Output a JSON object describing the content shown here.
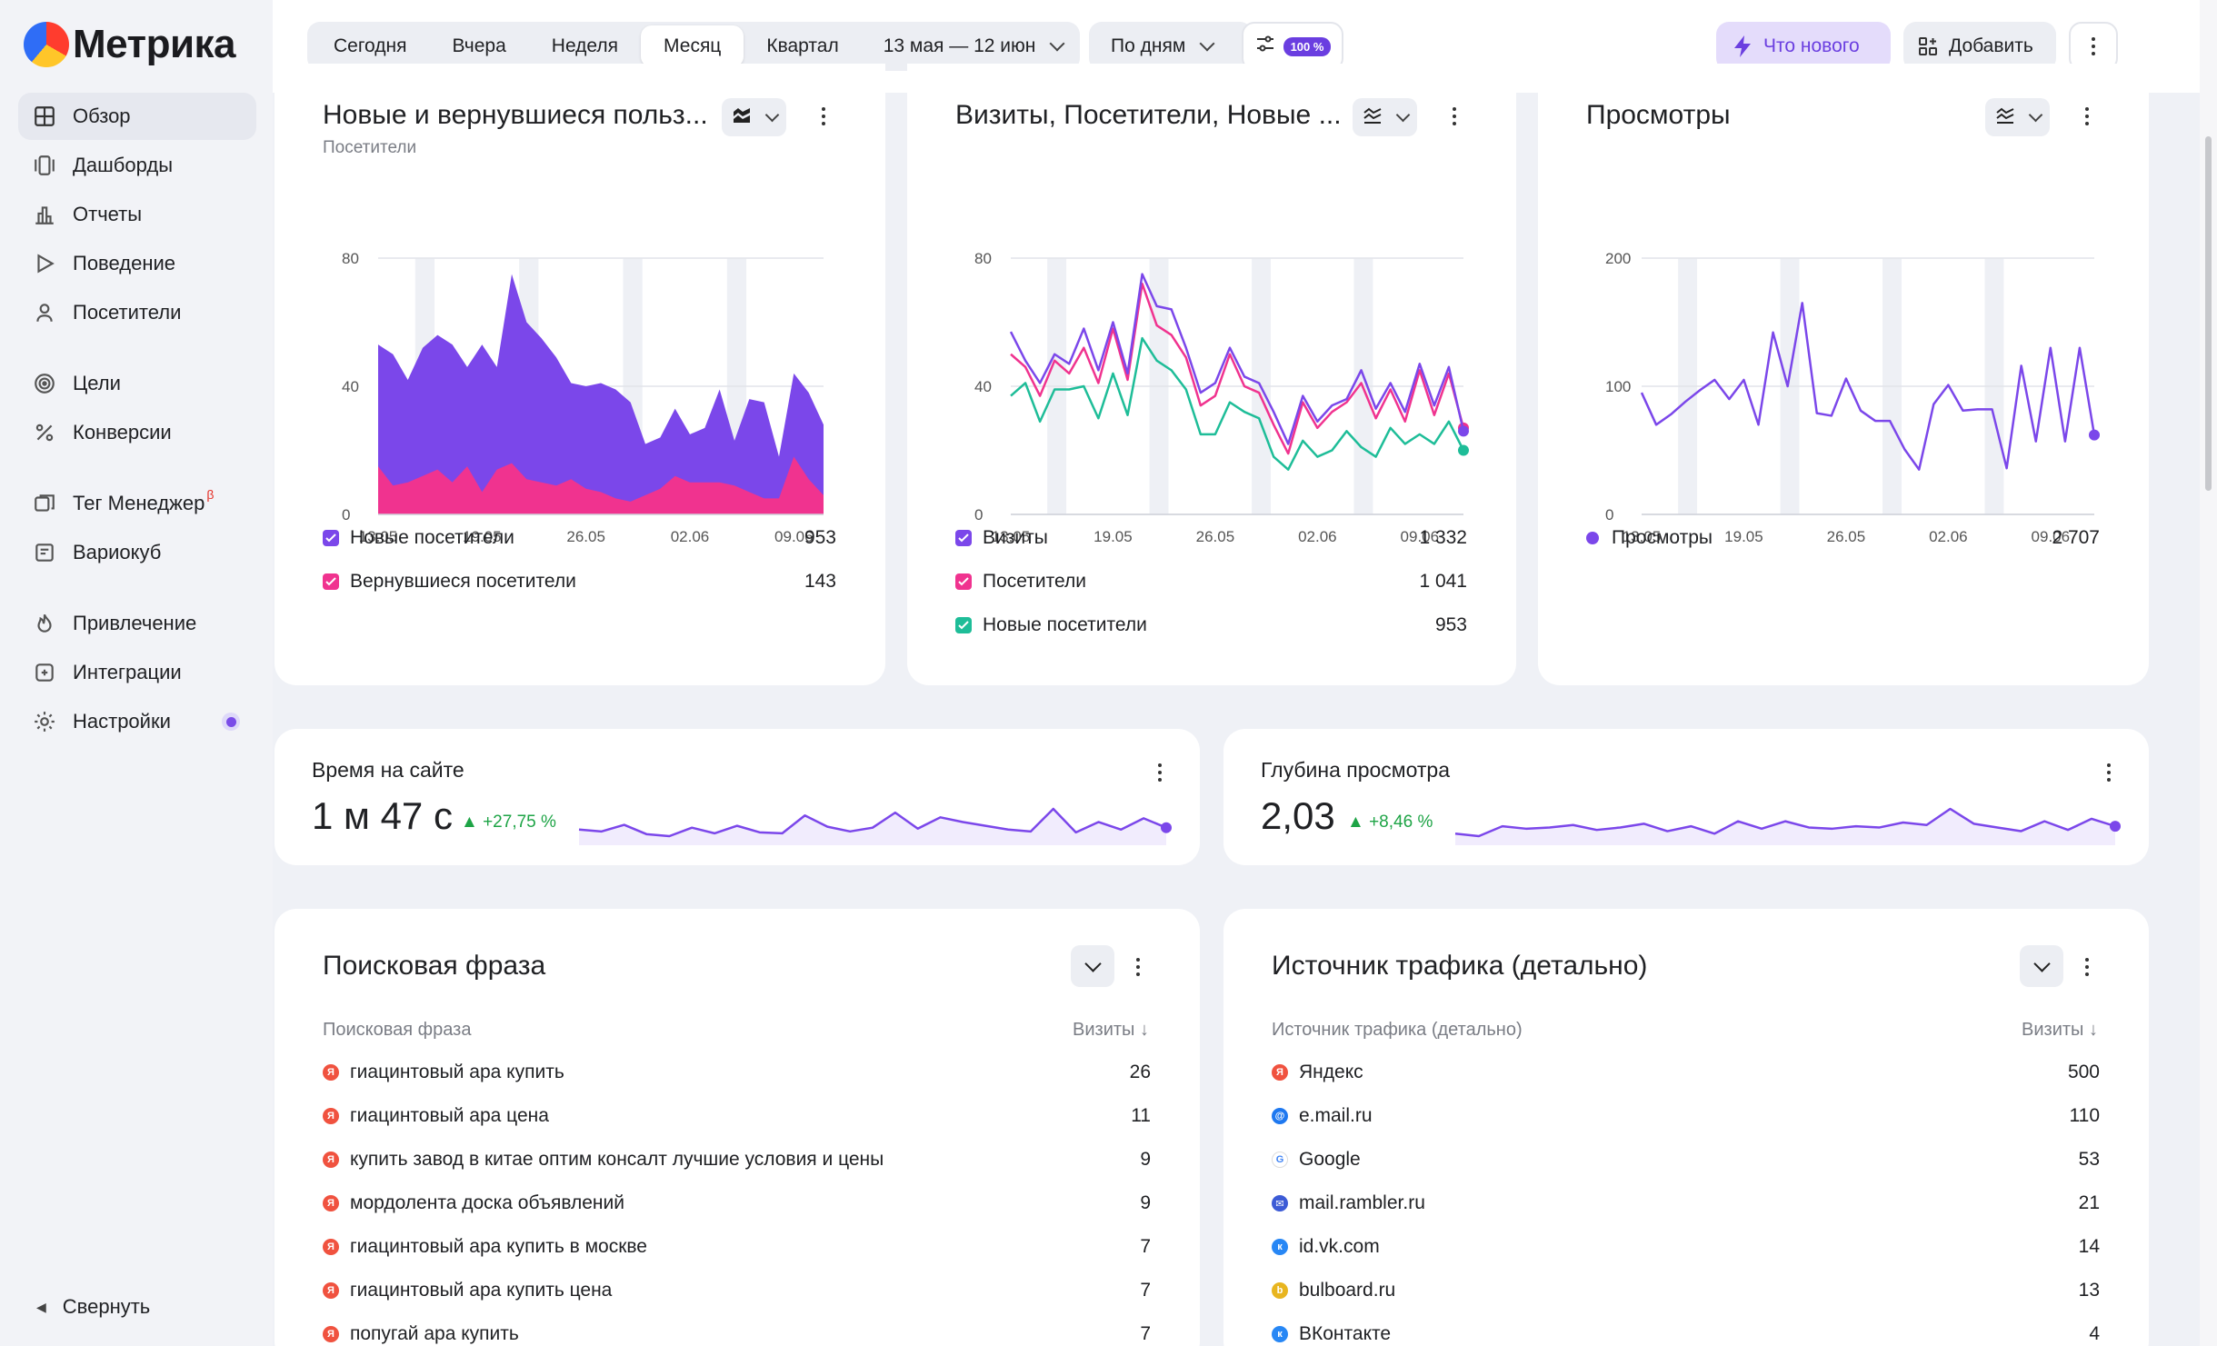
{
  "app": {
    "logo_text": "Метрика"
  },
  "sidebar": {
    "items": [
      {
        "label": "Обзор",
        "icon": "grid-icon",
        "active": true
      },
      {
        "label": "Дашборды",
        "icon": "dashboards-icon"
      },
      {
        "label": "Отчеты",
        "icon": "reports-icon"
      },
      {
        "label": "Поведение",
        "icon": "play-icon"
      },
      {
        "label": "Посетители",
        "icon": "user-icon"
      },
      {
        "label": "Цели",
        "icon": "target-icon"
      },
      {
        "label": "Конверсии",
        "icon": "percent-icon"
      },
      {
        "label": "Тег Менеджер",
        "icon": "tag-manager-icon",
        "badge": "β"
      },
      {
        "label": "Вариокуб",
        "icon": "variocube-icon"
      },
      {
        "label": "Привлечение",
        "icon": "flame-icon"
      },
      {
        "label": "Интеграции",
        "icon": "integrations-icon"
      },
      {
        "label": "Настройки",
        "icon": "gear-icon"
      }
    ],
    "collapse_label": "Свернуть"
  },
  "header": {
    "periods": [
      "Сегодня",
      "Вчера",
      "Неделя",
      "Месяц",
      "Квартал"
    ],
    "active_period": "Месяц",
    "date_range": "13 мая — 12 июн",
    "grouping": "По дням",
    "sampling": "100 %",
    "whats_new": "Что нового",
    "add": "Добавить"
  },
  "widgets": {
    "new_returning": {
      "title": "Новые и вернувшиеся польз...",
      "subtitle": "Посетители",
      "legend": [
        {
          "label": "Новые посетители",
          "value": "953",
          "color": "#7b47ea"
        },
        {
          "label": "Вернувшиеся посетители",
          "value": "143",
          "color": "#f0338f"
        }
      ]
    },
    "visits": {
      "title": "Визиты, Посетители, Новые ...",
      "legend": [
        {
          "label": "Визиты",
          "value": "1 332",
          "color": "#7b47ea"
        },
        {
          "label": "Посетители",
          "value": "1 041",
          "color": "#f0338f"
        },
        {
          "label": "Новые посетители",
          "value": "953",
          "color": "#1ebd98"
        }
      ]
    },
    "views": {
      "title": "Просмотры",
      "legend": [
        {
          "label": "Просмотры",
          "value": "2 707",
          "color": "#7b47ea"
        }
      ]
    },
    "time_on_site": {
      "label": "Время на сайте",
      "value": "1 м 47 с",
      "delta": "▲ +27,75 %"
    },
    "depth": {
      "label": "Глубина просмотра",
      "value": "2,03",
      "delta": "▲ +8,46 %"
    },
    "search_phrase": {
      "title": "Поисковая фраза",
      "col_name": "Поисковая фраза",
      "col_metric": "Визиты ↓",
      "rows": [
        {
          "label": "гиацинтовый ара купить",
          "value": "26"
        },
        {
          "label": "гиацинтовый ара цена",
          "value": "11"
        },
        {
          "label": "купить завод в китае оптим консалт лучшие условия и цены",
          "value": "9"
        },
        {
          "label": "мордолента доска объявлений",
          "value": "9"
        },
        {
          "label": "гиацинтовый ара купить в москве",
          "value": "7"
        },
        {
          "label": "гиацинтовый ара купить цена",
          "value": "7"
        },
        {
          "label": "попугай ара купить",
          "value": "7"
        }
      ]
    },
    "traffic_source": {
      "title": "Источник трафика (детально)",
      "col_name": "Источник трафика (детально)",
      "col_metric": "Визиты ↓",
      "rows": [
        {
          "label": "Яндекс",
          "value": "500",
          "icon": "yandex-icon"
        },
        {
          "label": "e.mail.ru",
          "value": "110",
          "icon": "mailru-icon"
        },
        {
          "label": "Google",
          "value": "53",
          "icon": "google-icon"
        },
        {
          "label": "mail.rambler.ru",
          "value": "21",
          "icon": "rambler-icon"
        },
        {
          "label": "id.vk.com",
          "value": "14",
          "icon": "vk-icon"
        },
        {
          "label": "bulboard.ru",
          "value": "13",
          "icon": "bulboard-icon"
        },
        {
          "label": "ВКонтакте",
          "value": "4",
          "icon": "vk-icon"
        }
      ]
    }
  },
  "chart_data": [
    {
      "type": "area",
      "x_ticks": [
        "13.05",
        "19.05",
        "26.05",
        "02.06",
        "09.06"
      ],
      "ylim": [
        0,
        80
      ],
      "y_ticks": [
        "0",
        "40",
        "80"
      ],
      "x": [
        "13.05",
        "14.05",
        "15.05",
        "16.05",
        "17.05",
        "18.05",
        "19.05",
        "20.05",
        "21.05",
        "22.05",
        "23.05",
        "24.05",
        "25.05",
        "26.05",
        "27.05",
        "28.05",
        "29.05",
        "30.05",
        "31.05",
        "01.06",
        "02.06",
        "03.06",
        "04.06",
        "05.06",
        "06.06",
        "07.06",
        "08.06",
        "09.06",
        "10.06",
        "11.06",
        "12.06"
      ],
      "series": [
        {
          "name": "Новые посетители",
          "values": [
            38,
            41,
            32,
            40,
            42,
            43,
            31,
            46,
            32,
            59,
            49,
            45,
            40,
            30,
            32,
            34,
            34,
            31,
            16,
            16,
            21,
            15,
            17,
            29,
            14,
            29,
            30,
            13,
            26,
            27,
            22
          ]
        },
        {
          "name": "Вернувшиеся посетители",
          "values": [
            15,
            9,
            10,
            12,
            14,
            10,
            15,
            7,
            14,
            16,
            11,
            10,
            9,
            11,
            8,
            7,
            5,
            4,
            6,
            8,
            12,
            10,
            10,
            10,
            9,
            7,
            5,
            5,
            18,
            11,
            6
          ]
        }
      ]
    },
    {
      "type": "line",
      "x_ticks": [
        "13.05",
        "19.05",
        "26.05",
        "02.06",
        "09.06"
      ],
      "ylim": [
        0,
        80
      ],
      "y_ticks": [
        "0",
        "40",
        "80"
      ],
      "series": [
        {
          "name": "Визиты",
          "values": [
            57,
            48,
            41,
            50,
            47,
            58,
            45,
            60,
            44,
            75,
            65,
            64,
            52,
            38,
            41,
            52,
            43,
            41,
            32,
            22,
            37,
            29,
            34,
            36,
            45,
            33,
            41,
            32,
            47,
            34,
            46,
            26
          ]
        },
        {
          "name": "Посетители",
          "values": [
            50,
            46,
            37,
            48,
            44,
            52,
            41,
            58,
            42,
            72,
            59,
            56,
            49,
            34,
            37,
            50,
            40,
            38,
            28,
            19,
            35,
            27,
            32,
            35,
            41,
            30,
            39,
            29,
            45,
            31,
            44,
            27
          ]
        },
        {
          "name": "Новые посетители",
          "values": [
            37,
            41,
            29,
            39,
            39,
            40,
            30,
            44,
            31,
            55,
            48,
            45,
            39,
            25,
            25,
            35,
            32,
            30,
            18,
            14,
            23,
            18,
            20,
            26,
            21,
            18,
            27,
            22,
            25,
            22,
            29,
            20
          ]
        }
      ]
    },
    {
      "type": "line",
      "x_ticks": [
        "13.05",
        "19.05",
        "26.05",
        "02.06",
        "09.06"
      ],
      "ylim": [
        0,
        200
      ],
      "y_ticks": [
        "0",
        "100",
        "200"
      ],
      "series": [
        {
          "name": "Просмотры",
          "values": [
            95,
            70,
            78,
            88,
            97,
            105,
            90,
            105,
            70,
            142,
            100,
            165,
            79,
            77,
            106,
            81,
            73,
            73,
            51,
            35,
            86,
            101,
            81,
            82,
            82,
            36,
            116,
            57,
            130,
            57,
            130,
            62
          ]
        }
      ]
    }
  ],
  "sparklines": {
    "time_on_site": [
      40,
      38,
      45,
      35,
      33,
      42,
      36,
      44,
      37,
      36,
      55,
      43,
      38,
      42,
      58,
      41,
      53,
      48,
      44,
      40,
      38,
      62,
      37,
      48,
      40,
      52,
      42
    ],
    "depth": [
      42,
      40,
      48,
      46,
      47,
      49,
      45,
      47,
      50,
      44,
      48,
      42,
      52,
      46,
      52,
      47,
      46,
      48,
      47,
      51,
      49,
      62,
      50,
      47,
      44,
      52,
      45,
      54,
      48
    ]
  }
}
